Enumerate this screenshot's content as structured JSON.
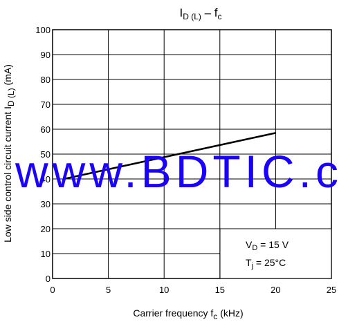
{
  "chart_data": {
    "type": "line",
    "title_main": "I",
    "title_sub": "D (L)",
    "title_dash": " – f",
    "title_sub2": "c",
    "xlabel_main": "Carrier frequency   f",
    "xlabel_sub": "c",
    "xlabel_unit": "(kHz)",
    "ylabel_main": "Low side control circuit current    I",
    "ylabel_sub": "D (L)",
    "ylabel_unit": "(mA)",
    "x_ticks": [
      "0",
      "5",
      "10",
      "15",
      "20",
      "25"
    ],
    "y_ticks": [
      "0",
      "10",
      "20",
      "30",
      "40",
      "50",
      "60",
      "70",
      "80",
      "90",
      "100"
    ],
    "xlim": [
      0,
      25
    ],
    "ylim": [
      0,
      100
    ],
    "grid": true,
    "series": [
      {
        "x": [
          1,
          20
        ],
        "y": [
          40,
          58.5
        ]
      }
    ],
    "annotation": {
      "line1_main": "V",
      "line1_sub": "D",
      "line1_rest": " = 15 V",
      "line2_main": "T",
      "line2_sub": "j",
      "line2_rest": " = 25°C"
    },
    "colors": {
      "line": "#000000",
      "watermark": "#1a00ff"
    }
  },
  "watermark": "www.BDTIC.com"
}
